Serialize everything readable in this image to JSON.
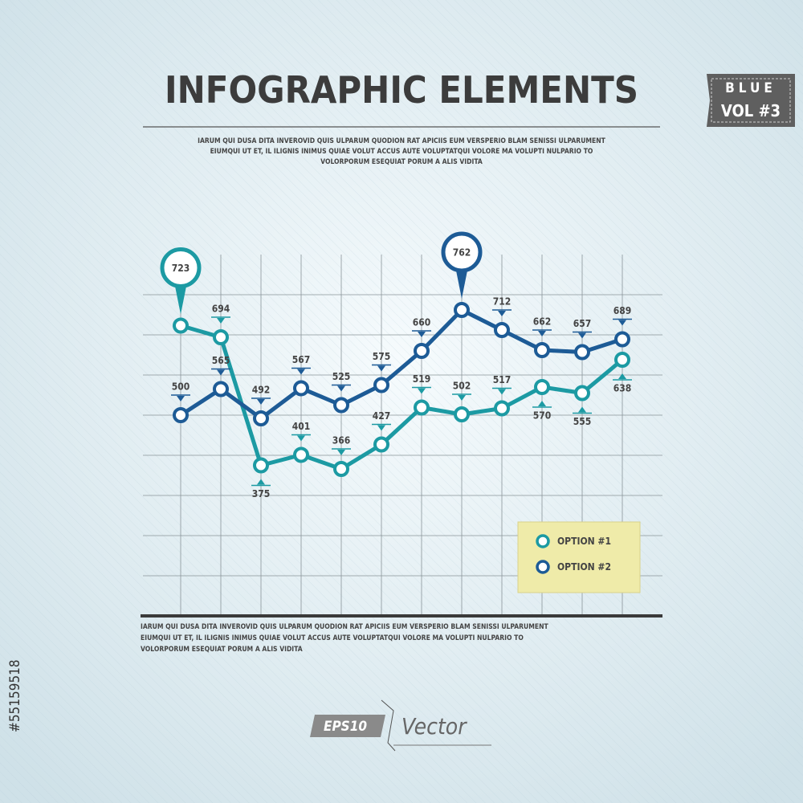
{
  "header": {
    "badge_top": "BLUE",
    "badge_bottom": "VOL #3",
    "intro": [
      "IARUM QUI DUSA DITA INVEROVID QUIS ULPARUM QUODION RAT APICIIS EUM VERSPERIO BLAM SENISSI ULPARUMENT",
      "EIUMQUI UT ET, IL ILIGNIS INIMUS QUIAE VOLUT ACCUS AUTE VOLUPTATQUI VOLORE MA VOLUPTI NULPARIO TO",
      "VOLORPORUM ESEQUIAT PORUM A ALIS VIDITA"
    ]
  },
  "chart_data": {
    "type": "line",
    "title": "INFOGRAPHIC ELEMENTS",
    "series": [
      {
        "name": "OPTION #1",
        "color": "#1c9aa3",
        "values": [
          723,
          694,
          375,
          401,
          366,
          427,
          519,
          502,
          517,
          570,
          555,
          638
        ]
      },
      {
        "name": "OPTION #2",
        "color": "#1d5b96",
        "values": [
          500,
          565,
          492,
          567,
          525,
          575,
          660,
          762,
          712,
          662,
          657,
          689
        ]
      }
    ],
    "ylim": [
      0,
      900
    ],
    "ygrid": [
      100,
      200,
      300,
      400,
      500,
      600,
      700,
      800
    ],
    "grid": true
  },
  "footer": {
    "text": [
      "IARUM QUI DUSA DITA INVEROVID QUIS ULPARUM QUODION RAT APICIIS EUM VERSPERIO BLAM SENISSI ULPARUMENT",
      "EIUMQUI UT ET, IL ILIGNIS INIMUS QUIAE VOLUT ACCUS AUTE VOLUPTATQUI VOLORE MA VOLUPTI NULPARIO TO",
      "VOLORPORUM ESEQUIAT PORUM A ALIS VIDITA"
    ],
    "logo_badge": "EPS10",
    "logo_text": "Vector",
    "stock_id": "#55159518"
  }
}
